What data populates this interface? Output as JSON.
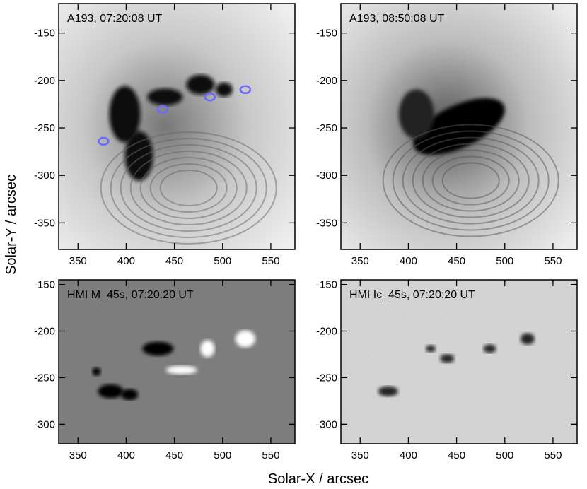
{
  "figure": {
    "xlabel": "Solar-X / arcsec",
    "ylabel": "Solar-Y / arcsec"
  },
  "chart_data": [
    {
      "type": "image",
      "title": "A193, 07:20:08 UT",
      "xlim": [
        330,
        575
      ],
      "xticks": [
        350,
        400,
        450,
        500,
        550
      ],
      "ylim": [
        -378,
        -119
      ],
      "yticks": [
        -350,
        -300,
        -250,
        -200,
        -150
      ]
    },
    {
      "type": "image",
      "title": "A193, 08:50:08 UT",
      "xlim": [
        330,
        575
      ],
      "xticks": [
        350,
        400,
        450,
        500,
        550
      ],
      "ylim": [
        -378,
        -119
      ],
      "yticks": [
        -350,
        -300,
        -250,
        -200,
        -150
      ]
    },
    {
      "type": "image",
      "title": "HMI M_45s, 07:20:20 UT",
      "xlim": [
        330,
        575
      ],
      "xticks": [
        350,
        400,
        450,
        500,
        550
      ],
      "ylim": [
        -321,
        -145
      ],
      "yticks": [
        -300,
        -250,
        -200,
        -150
      ]
    },
    {
      "type": "image",
      "title": "HMI Ic_45s, 07:20:20 UT",
      "xlim": [
        330,
        575
      ],
      "xticks": [
        350,
        400,
        450,
        500,
        550
      ],
      "ylim": [
        -321,
        -145
      ],
      "yticks": [
        -300,
        -250,
        -200,
        -150
      ]
    }
  ]
}
